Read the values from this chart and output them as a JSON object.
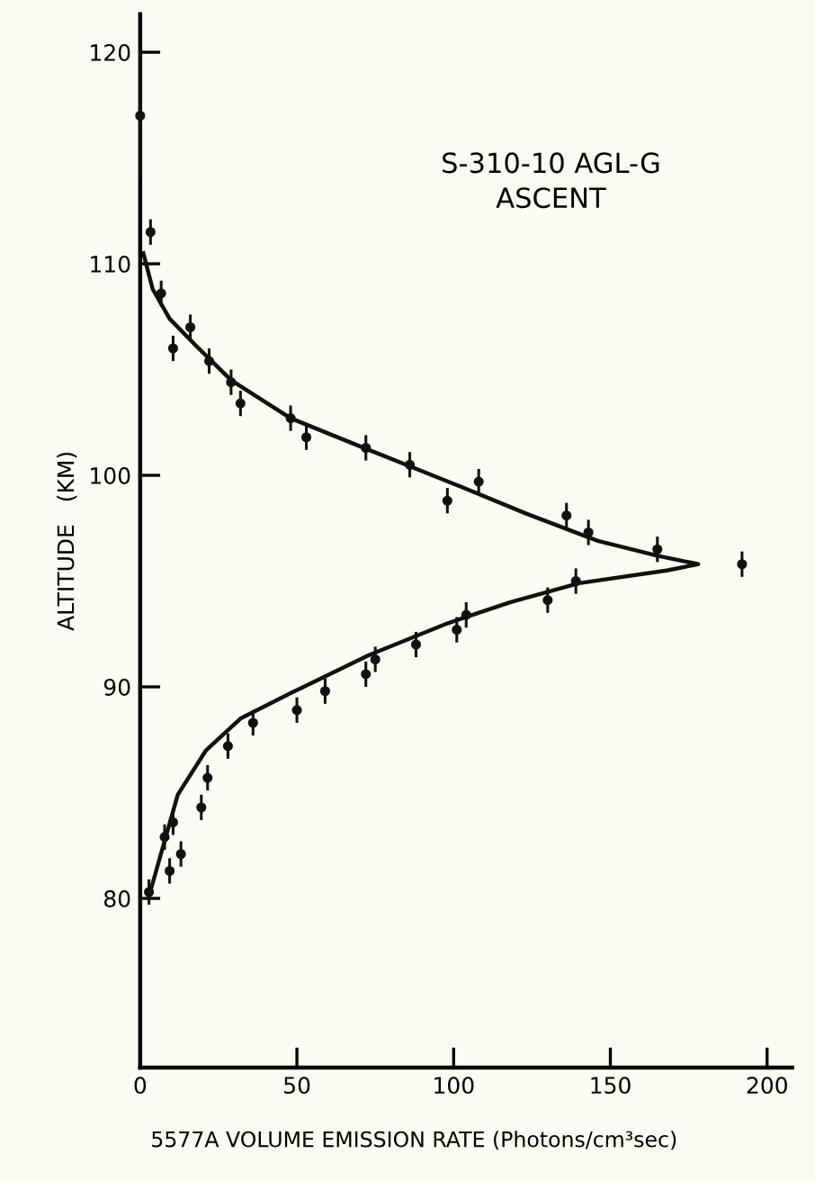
{
  "chart_data": {
    "type": "line",
    "xlabel": "5577A VOLUME EMISSION RATE (Photons/cm³sec)",
    "ylabel": "ALTITUDE   (KM)",
    "annotations": [
      "S-310-10 AGL-G\nASCENT"
    ],
    "xlim": [
      0,
      208
    ],
    "xticks": [
      0,
      50,
      100,
      150,
      200
    ],
    "ylim": [
      72,
      121.8
    ],
    "yticks": [
      80,
      90,
      100,
      110,
      120
    ],
    "grid": false,
    "legend": false,
    "series": [
      {
        "color": "#111111",
        "marker": "none",
        "x": [
          1,
          4,
          9.4,
          18,
          29,
          48,
          73,
          100,
          123,
          146,
          165,
          178,
          168,
          140,
          118,
          98,
          73,
          48,
          32,
          21,
          12,
          7,
          3
        ],
        "values": [
          110.5,
          108.8,
          107.4,
          106.1,
          104.5,
          102.7,
          101.2,
          99.6,
          98.2,
          96.9,
          96.2,
          95.8,
          95.5,
          94.9,
          94.0,
          93.0,
          91.5,
          89.7,
          88.5,
          87.0,
          84.9,
          82.3,
          80.2
        ]
      },
      {
        "type": "scatter",
        "color": "#111111",
        "marker": "circle",
        "x": [
          0,
          3.3,
          6.7,
          16,
          10.5,
          22,
          29,
          32,
          48,
          53,
          72,
          86,
          98,
          108,
          136,
          143,
          165,
          192,
          139,
          130,
          104,
          101,
          88,
          75,
          72,
          59,
          50,
          36,
          28,
          21.5,
          19.5,
          10.5,
          7.8,
          9.4,
          13,
          2.8
        ],
        "values": [
          117,
          111.5,
          108.6,
          107,
          106,
          105.4,
          104.4,
          103.4,
          102.7,
          101.8,
          101.3,
          100.5,
          98.8,
          99.7,
          98.1,
          97.3,
          96.5,
          95.8,
          95.0,
          94.1,
          93.4,
          92.7,
          92.0,
          91.3,
          90.6,
          89.8,
          88.9,
          88.3,
          87.2,
          85.7,
          84.3,
          83.6,
          82.9,
          81.3,
          82.1,
          80.3
        ],
        "errors": [
          3,
          0.6,
          0.6,
          0.6,
          0.6,
          0.6,
          0.6,
          0.6,
          0.6,
          0.6,
          0.6,
          0.6,
          0.6,
          0.6,
          0.6,
          0.6,
          0.6,
          0.6,
          0.6,
          0.6,
          0.6,
          0.6,
          0.6,
          0.6,
          0.6,
          0.6,
          0.6,
          0.6,
          0.6,
          0.6,
          0.6,
          0.6,
          0.6,
          0.6,
          0.6,
          0.6
        ]
      }
    ]
  }
}
